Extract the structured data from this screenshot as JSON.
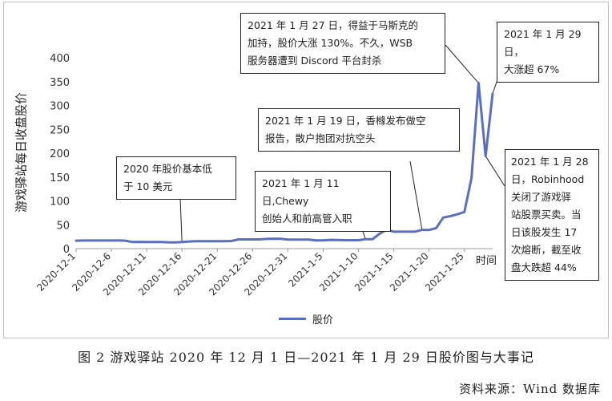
{
  "chart_data": {
    "type": "line",
    "ylabel": "游戏驿站每日收盘股价",
    "xlabel": "时间",
    "ylim": [
      0,
      400
    ],
    "yticks": [
      0,
      50,
      100,
      150,
      200,
      250,
      300,
      350,
      400
    ],
    "x_tick_labels": [
      "2020-12-1",
      "2020-12-6",
      "2020-12-11",
      "2020-12-16",
      "2020-12-21",
      "2020-12-26",
      "2020-12-31",
      "2021-1-5",
      "2021-1-10",
      "2021-1-15",
      "2021-1-20",
      "2021-1-25"
    ],
    "x_start": "2020-12-1",
    "x_end": "2021-1-29",
    "series": [
      {
        "name": "股价",
        "color": "#5b6fbf",
        "points": [
          [
            "2020-12-1",
            16.6
          ],
          [
            "2020-12-2",
            16.9
          ],
          [
            "2020-12-3",
            17.0
          ],
          [
            "2020-12-4",
            16.9
          ],
          [
            "2020-12-5",
            16.9
          ],
          [
            "2020-12-6",
            16.9
          ],
          [
            "2020-12-7",
            16.9
          ],
          [
            "2020-12-8",
            16.7
          ],
          [
            "2020-12-9",
            13.7
          ],
          [
            "2020-12-10",
            14.1
          ],
          [
            "2020-12-11",
            13.9
          ],
          [
            "2020-12-12",
            13.9
          ],
          [
            "2020-12-13",
            13.9
          ],
          [
            "2020-12-14",
            13.2
          ],
          [
            "2020-12-15",
            13.0
          ],
          [
            "2020-12-16",
            13.9
          ],
          [
            "2020-12-17",
            15.0
          ],
          [
            "2020-12-18",
            15.6
          ],
          [
            "2020-12-19",
            15.6
          ],
          [
            "2020-12-20",
            15.6
          ],
          [
            "2020-12-21",
            15.5
          ],
          [
            "2020-12-22",
            15.6
          ],
          [
            "2020-12-23",
            16.0
          ],
          [
            "2020-12-24",
            19.4
          ],
          [
            "2020-12-25",
            19.4
          ],
          [
            "2020-12-26",
            19.4
          ],
          [
            "2020-12-27",
            19.4
          ],
          [
            "2020-12-28",
            20.4
          ],
          [
            "2020-12-29",
            20.8
          ],
          [
            "2020-12-30",
            20.5
          ],
          [
            "2020-12-31",
            18.8
          ],
          [
            "2021-1-1",
            18.8
          ],
          [
            "2021-1-2",
            18.8
          ],
          [
            "2021-1-3",
            18.8
          ],
          [
            "2021-1-4",
            17.2
          ],
          [
            "2021-1-5",
            17.4
          ],
          [
            "2021-1-6",
            18.4
          ],
          [
            "2021-1-7",
            18.1
          ],
          [
            "2021-1-8",
            17.7
          ],
          [
            "2021-1-9",
            17.7
          ],
          [
            "2021-1-10",
            17.7
          ],
          [
            "2021-1-11",
            19.9
          ],
          [
            "2021-1-12",
            19.9
          ],
          [
            "2021-1-13",
            31.4
          ],
          [
            "2021-1-14",
            39.9
          ],
          [
            "2021-1-15",
            35.5
          ],
          [
            "2021-1-16",
            35.5
          ],
          [
            "2021-1-17",
            35.5
          ],
          [
            "2021-1-18",
            35.5
          ],
          [
            "2021-1-19",
            39.4
          ],
          [
            "2021-1-20",
            39.1
          ],
          [
            "2021-1-21",
            43.0
          ],
          [
            "2021-1-22",
            65.0
          ],
          [
            "2021-1-23",
            68.0
          ],
          [
            "2021-1-24",
            72.0
          ],
          [
            "2021-1-25",
            76.8
          ],
          [
            "2021-1-26",
            147.98
          ],
          [
            "2021-1-27",
            347.51
          ],
          [
            "2021-1-28",
            193.6
          ],
          [
            "2021-1-29",
            325.0
          ]
        ]
      }
    ],
    "annotations": [
      {
        "lines": [
          "2020 年股价基本低",
          "于 10 美元"
        ],
        "date": "2020-12-16",
        "value": 14
      },
      {
        "lines": [
          "2021 年 1 月 11 日,Chewy",
          "创始人和前高管入职"
        ],
        "date": "2021-1-11",
        "value": 20
      },
      {
        "lines": [
          "2021 年 1 月 19 日，香橼发布做空",
          "报告，散户抱团对抗空头"
        ],
        "date": "2021-1-19",
        "value": 39
      },
      {
        "lines": [
          "2021 年 1 月 27 日，得益于马斯克的",
          "加持，股价大涨 130%。不久，WSB",
          "服务器遭到 Discord 平台封杀"
        ],
        "date": "2021-1-27",
        "value": 347
      },
      {
        "lines": [
          "2021 年 1 月 29 日，",
          "大涨超 67%"
        ],
        "date": "2021-1-29",
        "value": 325
      },
      {
        "lines": [
          "2021 年 1 月 28",
          "日，Robinhood",
          "关闭了游戏驿",
          "站股票买卖。当",
          "日该股发生 17",
          "次熔断，截至收",
          "盘大跌超 44%"
        ],
        "date": "2021-1-28",
        "value": 194
      }
    ],
    "legend": "bottom-center",
    "grid": false
  },
  "caption": "图 2  游戏驿站 2020 年 12 月 1 日—2021 年 1 月 29 日股价图与大事记",
  "source": "资料来源：Wind 数据库"
}
